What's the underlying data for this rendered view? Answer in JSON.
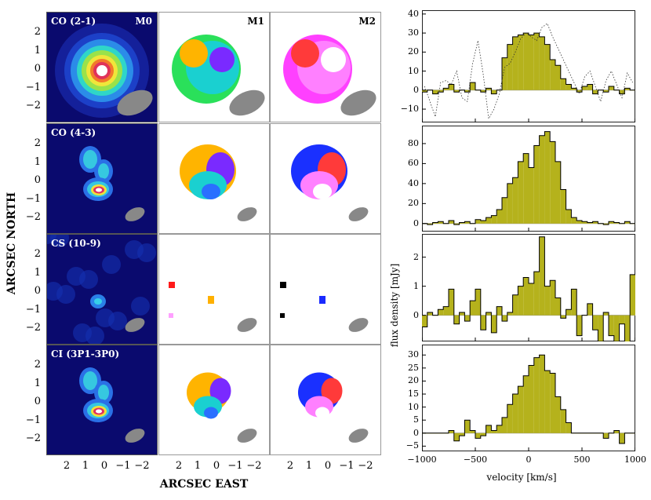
{
  "figure": {
    "ylabel": "ARCSEC NORTH",
    "xlabel": "ARCSEC EAST",
    "map_yticks": [
      "2",
      "1",
      "0",
      "−1",
      "−2"
    ],
    "map_xticks": [
      "2",
      "1",
      "0",
      "−1",
      "−2"
    ],
    "col_labels": [
      "M0",
      "M1",
      "M2"
    ],
    "rows": [
      {
        "line": "CO (2-1)"
      },
      {
        "line": "CO (4-3)"
      },
      {
        "line": "CS (10-9)"
      },
      {
        "line": "CI (3P1-3P0)"
      }
    ]
  },
  "spectra": {
    "xlabel": "velocity [km/s]",
    "ylabel": "flux density [mJy]",
    "xticks": [
      "−1000",
      "−500",
      "0",
      "500",
      "1000"
    ],
    "colors": {
      "fill": "#b5b21c",
      "edge": "#000000"
    }
  },
  "chart_data": [
    {
      "type": "bar",
      "title": "CO (2-1)",
      "xlabel": "",
      "ylabel": "",
      "xlim": [
        -1000,
        1000
      ],
      "ylim": [
        -17,
        42
      ],
      "yticks": [
        "40",
        "30",
        "20",
        "10",
        "0",
        "−10"
      ],
      "x": [
        -1000,
        -950,
        -900,
        -850,
        -800,
        -750,
        -700,
        -650,
        -600,
        -550,
        -500,
        -450,
        -400,
        -350,
        -300,
        -250,
        -200,
        -150,
        -100,
        -50,
        0,
        50,
        100,
        150,
        200,
        250,
        300,
        350,
        400,
        450,
        500,
        550,
        600,
        650,
        700,
        750,
        800,
        850,
        900,
        950
      ],
      "values": [
        -1,
        0,
        -2,
        -1,
        1,
        3,
        -1,
        0,
        -1,
        4,
        0,
        -1,
        1,
        -2,
        0,
        17,
        24,
        28,
        29,
        30,
        29,
        30,
        28,
        24,
        16,
        13,
        6,
        3,
        1,
        -1,
        2,
        3,
        -2,
        0,
        -1,
        2,
        0,
        -2,
        1,
        0
      ],
      "series": [
        {
          "name": "dotted",
          "values": [
            2,
            -6,
            -14,
            4,
            5,
            3,
            10,
            -4,
            -6,
            14,
            26,
            8,
            -15,
            -10,
            -2,
            12,
            14,
            20,
            27,
            30,
            28,
            26,
            33,
            35,
            28,
            22,
            16,
            10,
            4,
            -2,
            7,
            10,
            2,
            -6,
            5,
            10,
            3,
            -4,
            9,
            4
          ]
        }
      ]
    },
    {
      "type": "bar",
      "title": "CO (4-3)",
      "xlabel": "",
      "ylabel": "",
      "xlim": [
        -1000,
        1000
      ],
      "ylim": [
        -8,
        98
      ],
      "yticks": [
        "80",
        "60",
        "40",
        "20",
        "0"
      ],
      "x": [
        -1000,
        -950,
        -900,
        -850,
        -800,
        -750,
        -700,
        -650,
        -600,
        -550,
        -500,
        -450,
        -400,
        -350,
        -300,
        -250,
        -200,
        -150,
        -100,
        -50,
        0,
        50,
        100,
        150,
        200,
        250,
        300,
        350,
        400,
        450,
        500,
        550,
        600,
        650,
        700,
        750,
        800,
        850,
        900,
        950
      ],
      "values": [
        0,
        -1,
        1,
        2,
        0,
        3,
        -1,
        1,
        2,
        0,
        4,
        3,
        6,
        8,
        14,
        26,
        40,
        46,
        62,
        70,
        56,
        78,
        88,
        92,
        82,
        62,
        34,
        14,
        6,
        3,
        2,
        1,
        2,
        0,
        -1,
        2,
        1,
        0,
        2,
        0
      ]
    },
    {
      "type": "bar",
      "title": "CS (10-9)",
      "xlabel": "",
      "ylabel": "",
      "xlim": [
        -1000,
        1000
      ],
      "ylim": [
        -0.9,
        2.8
      ],
      "yticks": [
        "2",
        "1",
        "0"
      ],
      "x": [
        -1000,
        -950,
        -900,
        -850,
        -800,
        -750,
        -700,
        -650,
        -600,
        -550,
        -500,
        -450,
        -400,
        -350,
        -300,
        -250,
        -200,
        -150,
        -100,
        -50,
        0,
        50,
        100,
        150,
        200,
        250,
        300,
        350,
        400,
        450,
        500,
        550,
        600,
        650,
        700,
        750,
        800,
        850,
        900,
        950
      ],
      "values": [
        -0.4,
        0.1,
        0.0,
        0.2,
        0.3,
        0.9,
        -0.3,
        0.1,
        -0.2,
        0.5,
        0.9,
        -0.5,
        0.1,
        -0.6,
        0.3,
        -0.2,
        0.1,
        0.7,
        1.0,
        1.3,
        1.1,
        1.5,
        2.7,
        1.0,
        1.2,
        0.6,
        -0.1,
        0.2,
        0.9,
        -0.7,
        0.0,
        0.4,
        -0.5,
        -0.9,
        0.1,
        -0.7,
        -0.9,
        -0.3,
        -1.0,
        1.4
      ]
    },
    {
      "type": "bar",
      "title": "CI (3P1-3P0)",
      "xlabel": "velocity [km/s]",
      "ylabel": "",
      "xlim": [
        -1000,
        1000
      ],
      "ylim": [
        -7,
        34
      ],
      "yticks": [
        "30",
        "25",
        "20",
        "15",
        "10",
        "5",
        "0",
        "−5"
      ],
      "x": [
        -1000,
        -950,
        -900,
        -850,
        -800,
        -750,
        -700,
        -650,
        -600,
        -550,
        -500,
        -450,
        -400,
        -350,
        -300,
        -250,
        -200,
        -150,
        -100,
        -50,
        0,
        50,
        100,
        150,
        200,
        250,
        300,
        350,
        400,
        450,
        500,
        550,
        600,
        650,
        700,
        750,
        800,
        850,
        900,
        950
      ],
      "values": [
        0,
        0,
        0,
        0,
        0,
        1,
        -3,
        -1,
        5,
        1,
        -2,
        -1,
        3,
        1,
        3,
        6,
        11,
        15,
        18,
        22,
        26,
        29,
        30,
        24,
        23,
        14,
        9,
        4,
        0,
        0,
        0,
        0,
        0,
        0,
        -2,
        0,
        1,
        -4,
        0,
        0
      ]
    }
  ]
}
